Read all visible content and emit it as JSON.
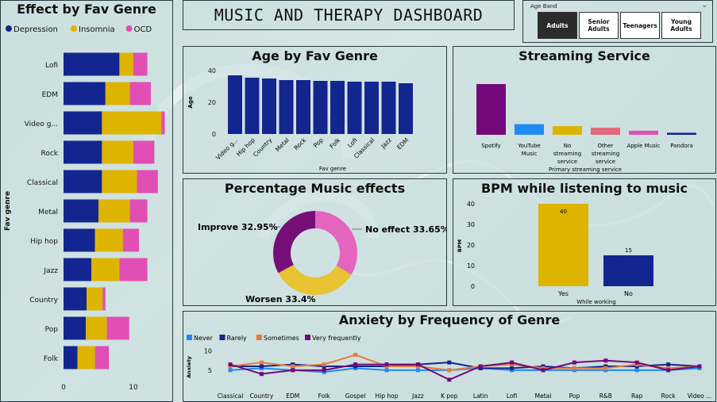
{
  "dashboard": {
    "title": "MUSIC AND THERAPY DASHBOARD"
  },
  "slicer": {
    "label": "Age Band",
    "options": [
      "Adults",
      "Senior Adults",
      "Teenagers",
      "Young Adults"
    ],
    "selected": "Adults"
  },
  "colors": {
    "navy": "#13268f",
    "gold": "#ddb400",
    "pink": "#e14fb4",
    "purple": "#73097a",
    "blue": "#1f8bf0",
    "red": "#e0687a",
    "orange": "#e67c3e",
    "donut_pink": "#e565be",
    "donut_gold": "#e8c333",
    "donut_purple": "#760e78"
  },
  "chart_data": [
    {
      "id": "effect_by_fav_genre",
      "type": "bar",
      "orientation": "horizontal",
      "stacked": true,
      "title": "Effect by Fav Genre",
      "ylabel": "Fav genre",
      "xlabel": "",
      "categories": [
        "Lofi",
        "EDM",
        "Video g...",
        "Rock",
        "Classical",
        "Metal",
        "Hip hop",
        "Jazz",
        "Country",
        "Pop",
        "Folk"
      ],
      "series": [
        {
          "name": "Depression",
          "values": [
            8,
            6,
            5.5,
            5.5,
            5.5,
            5,
            4.5,
            4,
            3.3,
            3.2,
            2
          ]
        },
        {
          "name": "Insomnia",
          "values": [
            2,
            3.5,
            8.5,
            4.5,
            5,
            4.5,
            4,
            4,
            2.3,
            3,
            2.5
          ]
        },
        {
          "name": "OCD",
          "values": [
            2,
            3,
            0.5,
            3,
            3,
            2.5,
            2.3,
            4,
            0.4,
            3.2,
            2
          ]
        }
      ],
      "xticks": [
        0,
        10
      ],
      "xlim": [
        0,
        15
      ],
      "legend": "top"
    },
    {
      "id": "age_by_fav_genre",
      "type": "bar",
      "title": "Age by Fav Genre",
      "xlabel": "Fav genre",
      "ylabel": "Age",
      "categories": [
        "Video g...",
        "Hip hop",
        "Country",
        "Metal",
        "Rock",
        "Pop",
        "Folk",
        "Lofi",
        "Classical",
        "Jazz",
        "EDM"
      ],
      "values": [
        37,
        35.5,
        35,
        34,
        34,
        33.5,
        33.5,
        33,
        33,
        33,
        32
      ],
      "yticks": [
        0,
        20,
        40
      ],
      "ylim": [
        0,
        40
      ]
    },
    {
      "id": "streaming_service",
      "type": "bar",
      "title": "Streaming Service",
      "xlabel": "Primary streaming service",
      "ylabel": "",
      "categories": [
        "Spotify",
        "YouTube Music",
        "No streaming service",
        "Other streaming service",
        "Apple Music",
        "Pandora"
      ],
      "values": [
        100,
        21,
        17,
        14,
        8,
        4
      ],
      "bar_colors": [
        "#73097a",
        "#1f8bf0",
        "#ddb400",
        "#e0687a",
        "#e14fb4",
        "#13268f"
      ]
    },
    {
      "id": "music_effects",
      "type": "pie",
      "donut": true,
      "title": "Percentage Music effects",
      "labels": [
        "No effect",
        "Worsen",
        "Improve"
      ],
      "values": [
        33.65,
        33.4,
        32.95
      ],
      "display": [
        "No effect 33.65%",
        "Worsen 33.4%",
        "Improve 32.95%"
      ]
    },
    {
      "id": "bpm_while_listening",
      "type": "bar",
      "title": "BPM while listening to music",
      "xlabel": "While working",
      "ylabel": "BPM",
      "categories": [
        "Yes",
        "No"
      ],
      "values": [
        40,
        15
      ],
      "data_labels": [
        "40",
        "15"
      ],
      "bar_colors": [
        "#ddb400",
        "#13268f"
      ],
      "yticks": [
        0,
        10,
        20,
        30,
        40
      ],
      "ylim": [
        0,
        40
      ]
    },
    {
      "id": "anxiety_by_frequency",
      "type": "line",
      "title": "Anxiety by Frequency of Genre",
      "xlabel": "",
      "ylabel": "Anxiety",
      "categories": [
        "Classical",
        "Country",
        "EDM",
        "Folk",
        "Gospel",
        "Hip hop",
        "Jazz",
        "K pop",
        "Latin",
        "Lofi",
        "Metal",
        "Pop",
        "R&B",
        "Rap",
        "Rock",
        "Video ..."
      ],
      "series": [
        {
          "name": "Never",
          "color": "#1f8bf0",
          "values": [
            5,
            5.5,
            5,
            4.5,
            5.5,
            5,
            5,
            5,
            5.5,
            5,
            5,
            5,
            5,
            5,
            5,
            5.5
          ]
        },
        {
          "name": "Rarely",
          "color": "#13268f",
          "values": [
            6,
            6,
            6.5,
            6,
            6,
            6,
            6.5,
            7,
            5.5,
            5.5,
            6,
            5.5,
            6,
            6,
            6.5,
            6
          ]
        },
        {
          "name": "Sometimes",
          "color": "#e67c3e",
          "values": [
            6,
            7,
            6,
            6.5,
            9,
            6,
            6,
            5,
            6,
            6.5,
            5.5,
            5.5,
            5.5,
            6.5,
            5.5,
            6
          ]
        },
        {
          "name": "Very frequently",
          "color": "#73097a",
          "values": [
            6.5,
            4,
            5,
            5,
            6.5,
            6.5,
            6.5,
            2.5,
            6,
            7,
            5,
            7,
            7.5,
            7,
            5,
            6
          ]
        }
      ],
      "yticks": [
        5,
        10
      ],
      "ylim": [
        0,
        12
      ],
      "legend": "top-left"
    }
  ]
}
